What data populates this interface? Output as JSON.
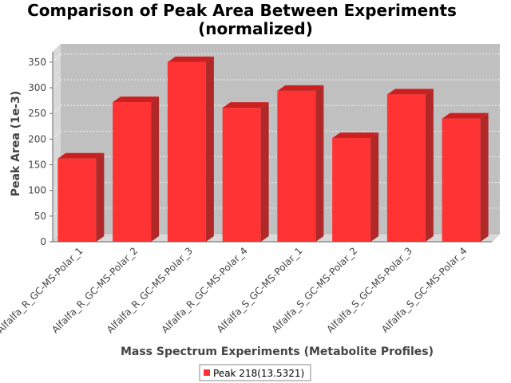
{
  "chart_data": {
    "type": "bar",
    "title": "Comparison of Peak Area Between Experiments",
    "subtitle": "(normalized)",
    "xlabel": "Mass Spectrum Experiments (Metabolite Profiles)",
    "ylabel": "Peak Area (1e-3)",
    "categories": [
      "Alfalfa_R_GC-MS-Polar_1",
      "Alfalfa_R_GC-MS-Polar_2",
      "Alfalfa_R_GC-MS-Polar_3",
      "Alfalfa_R_GC-MS-Polar_4",
      "Alfalfa_S_GC-MS-Polar_1",
      "Alfalfa_S_GC-MS-Polar_2",
      "Alfalfa_S_GC-MS-Polar_3",
      "Alfalfa_S_GC-MS-Polar_4"
    ],
    "series": [
      {
        "name": "Peak 218(13.5321)",
        "values": [
          162,
          272,
          350,
          261,
          294,
          202,
          287,
          240
        ],
        "color": "#ff3333"
      }
    ],
    "ylim": [
      0,
      370
    ],
    "yticks": [
      0,
      50,
      100,
      150,
      200,
      250,
      300,
      350
    ],
    "grid": true,
    "legend": "bottom-center"
  }
}
